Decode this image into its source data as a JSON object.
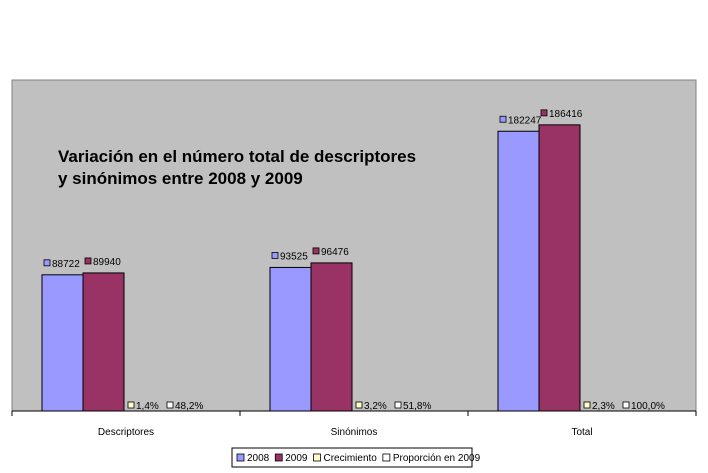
{
  "chart_data": {
    "type": "bar",
    "title_lines": [
      "Variación en el número total de descriptores",
      "y sinónimos entre 2008 y 2009"
    ],
    "categories": [
      "Descriptores",
      "Sinónimos",
      "Total"
    ],
    "series": [
      {
        "name": "2008",
        "values": [
          88722,
          93525,
          182247
        ],
        "labels": [
          "88722",
          "93525",
          "182247"
        ]
      },
      {
        "name": "2009",
        "values": [
          89940,
          96476,
          186416
        ],
        "labels": [
          "89940",
          "96476",
          "186416"
        ]
      },
      {
        "name": "Crecimiento",
        "values": [
          0.014,
          0.032,
          0.023
        ],
        "labels": [
          "1,4%",
          "3,2%",
          "2,3%"
        ]
      },
      {
        "name": "Proporción en 2009",
        "values": [
          0.482,
          0.518,
          1.0
        ],
        "labels": [
          "48,2%",
          "51,8%",
          "100,0%"
        ]
      }
    ],
    "ylim": [
      0,
      200000
    ],
    "grid": false,
    "legend_position": "bottom",
    "colors": {
      "plot_bg": "#c0c0c0",
      "s2008": "#9999ff",
      "s2009": "#993366",
      "crecimiento": "#ffffcc",
      "proporcion": "#ffffff"
    }
  }
}
